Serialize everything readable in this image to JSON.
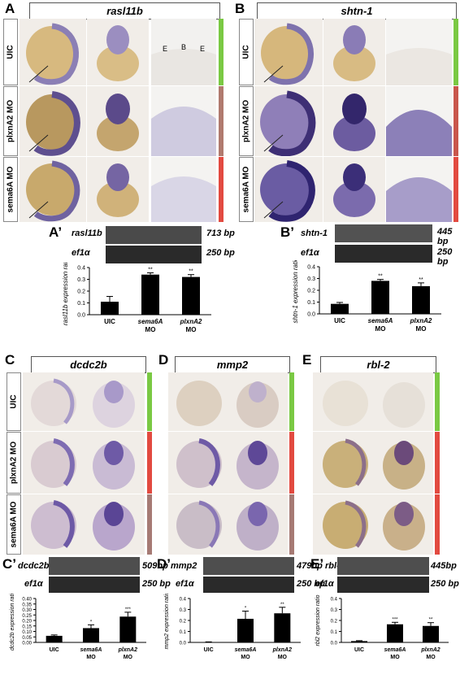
{
  "panels": {
    "A": {
      "letter": "A",
      "gene": "rasl11b",
      "rows": [
        "UIC",
        "plxnA2 MO",
        "sema6A MO"
      ],
      "section_labels": [
        "E",
        "B",
        "E"
      ],
      "status_colors": [
        "#7ac943",
        "#b07a6e",
        "#e24a40"
      ]
    },
    "B": {
      "letter": "B",
      "gene": "shtn-1",
      "rows": [
        "UIC",
        "plxnA2 MO",
        "sema6A MO"
      ],
      "status_colors": [
        "#7ac943",
        "#c9564c",
        "#e24a40"
      ]
    },
    "C": {
      "letter": "C",
      "gene": "dcdc2b",
      "rows": [
        "UIC",
        "plxnA2 MO",
        "sema6A MO"
      ],
      "status_colors": [
        "#7ac943",
        "#e24a40",
        "#a67a74"
      ]
    },
    "D": {
      "letter": "D",
      "gene": "mmp2",
      "status_colors": [
        "#7ac943",
        "#e24a40",
        "#a67a74"
      ]
    },
    "E": {
      "letter": "E",
      "gene": "rbl-2",
      "status_colors": [
        "#7ac943",
        "#e24a40",
        "#e24a40"
      ]
    }
  },
  "gels": {
    "A": {
      "letter": "A’",
      "gene": "rasl11b",
      "gene_size": "713 bp",
      "ref": "ef1α",
      "ref_size": "250 bp"
    },
    "B": {
      "letter": "B’",
      "gene": "shtn-1",
      "gene_size": "445 bp",
      "ref": "ef1α",
      "ref_size": "250 bp"
    },
    "C": {
      "letter": "C’",
      "gene": "dcdc2b",
      "gene_size": "509bp",
      "ref": "ef1α",
      "ref_size": "250 bp"
    },
    "D": {
      "letter": "D’",
      "gene": "mmp2",
      "gene_size": "479bp",
      "ref": "ef1α",
      "ref_size": "250 bp"
    },
    "E": {
      "letter": "E’",
      "gene": "rbl-2",
      "gene_size": "445bp",
      "ref": "ef1α",
      "ref_size": "250 bp"
    }
  },
  "chart_data": [
    {
      "id": "A",
      "type": "bar",
      "ylabel": "rasl11b expression ratio",
      "ylim": [
        0,
        0.4
      ],
      "yticks": [
        "0.0",
        "0.1",
        "0.2",
        "0.3",
        "0.4"
      ],
      "categories": [
        "UIC",
        "sema6A MO",
        "plxnA2 MO"
      ],
      "values": [
        0.11,
        0.34,
        0.32
      ],
      "errors": [
        0.045,
        0.015,
        0.02
      ],
      "significance": [
        "",
        "**",
        "**"
      ]
    },
    {
      "id": "B",
      "type": "bar",
      "ylabel": "shtn-1 expression ratio",
      "ylim": [
        0,
        0.4
      ],
      "yticks": [
        "0.0",
        "0.1",
        "0.2",
        "0.3",
        "0.4"
      ],
      "categories": [
        "UIC",
        "sema6A MO",
        "plxnA2 MO"
      ],
      "values": [
        0.085,
        0.28,
        0.235
      ],
      "errors": [
        0.012,
        0.012,
        0.028
      ],
      "significance": [
        "",
        "**",
        "**"
      ]
    },
    {
      "id": "C",
      "type": "bar",
      "ylabel": "dcdc2b expression ratio",
      "ylim": [
        0,
        0.4
      ],
      "yticks": [
        "0.00",
        "0.05",
        "0.10",
        "0.15",
        "0.20",
        "0.25",
        "0.30",
        "0.35",
        "0.40"
      ],
      "categories": [
        "UIC",
        "sema6A MO",
        "plxnA2 MO"
      ],
      "values": [
        0.06,
        0.13,
        0.235
      ],
      "errors": [
        0.008,
        0.03,
        0.04
      ],
      "significance": [
        "",
        "*",
        "***"
      ]
    },
    {
      "id": "D",
      "type": "bar",
      "ylabel": "mmp2 expression ratio",
      "ylim": [
        0,
        0.4
      ],
      "yticks": [
        "0.0",
        "0.1",
        "0.2",
        "0.3",
        "0.4"
      ],
      "categories": [
        "UIC",
        "sema6A MO",
        "plxnA2 MO"
      ],
      "values": [
        0.003,
        0.215,
        0.265
      ],
      "errors": [
        0.002,
        0.07,
        0.055
      ],
      "significance": [
        "",
        "*",
        "**"
      ]
    },
    {
      "id": "E",
      "type": "bar",
      "ylabel": "rbl2 expression ratio",
      "ylim": [
        0,
        0.4
      ],
      "yticks": [
        "0.0",
        "0.1",
        "0.2",
        "0.3",
        "0.4"
      ],
      "categories": [
        "UIC",
        "sema6A MO",
        "plxnA2 MO"
      ],
      "values": [
        0.012,
        0.165,
        0.15
      ],
      "errors": [
        0.004,
        0.018,
        0.03
      ],
      "significance": [
        "",
        "***",
        "**"
      ]
    }
  ]
}
